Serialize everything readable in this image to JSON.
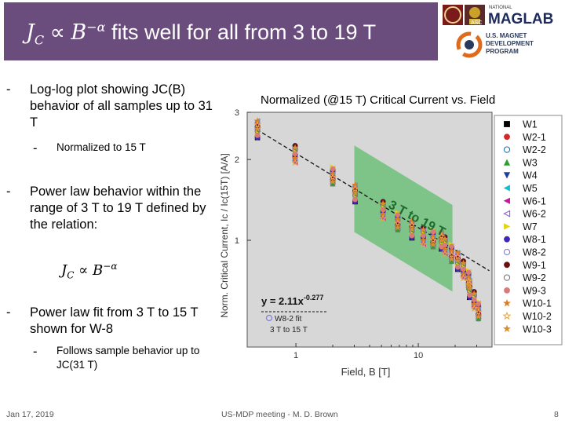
{
  "slide": {
    "title_jc": "J",
    "title_c": "C",
    "title_prop": " ∝ ",
    "title_b": "B",
    "title_exp": "−α",
    "title_rest": " fits well for all from 3 to 19 T",
    "logo_text": "MAGLAB",
    "logo_national": "NATIONAL",
    "logo_asc": "ASC",
    "program_text_1": "U.S. MAGNET",
    "program_text_2": "DEVELOPMENT",
    "program_text_3": "PROGRAM"
  },
  "bullets": [
    {
      "dash": "-",
      "text": "Log-log plot showing JC(B) behavior of all samples up to 31 T"
    },
    {
      "dash": "-",
      "text": "Normalized to 15 T"
    },
    {
      "dash": "-",
      "text": "Power law behavior within the range of 3 T to 19 T defined by the relation:"
    },
    {
      "dash": "-",
      "text": "Power law fit from 3 T to 15 T shown for W-8"
    },
    {
      "dash": "-",
      "text": "Follows sample behavior up to JC(31 T)"
    }
  ],
  "formula": {
    "j": "J",
    "c": "C",
    "prop": " ∝ ",
    "b": "B",
    "exp": "−α"
  },
  "footer": {
    "date": "Jan 17, 2019",
    "meeting": "US-MDP meeting - M. D. Brown",
    "page": "8"
  },
  "chart_data": {
    "type": "scatter",
    "title": "Normalized (@15 T) Critical Current vs. Field",
    "xlabel": "Field, B [T]",
    "ylabel": "Norm. Critical Current, Ic / Ic(15T) [A/A]",
    "xscale": "log",
    "yscale": "log",
    "xlim": [
      0.4,
      40
    ],
    "ylim": [
      0.4,
      3
    ],
    "x_ticks": [
      "1",
      "10"
    ],
    "y_ticks": [
      "1",
      "2",
      "3"
    ],
    "band_label": "3 T to 19 T",
    "fit_equation": "y = 2.11x",
    "fit_exponent": "-0.277",
    "fit_legend_1": "W8-2 fit",
    "fit_legend_2": "3 T to 15 T",
    "fit": {
      "a": 2.11,
      "b": -0.277
    },
    "legend_placement": "right",
    "series": [
      {
        "name": "W1",
        "color": "#000000",
        "marker": "square"
      },
      {
        "name": "W2-1",
        "color": "#d62728",
        "marker": "circle"
      },
      {
        "name": "W2-2",
        "color": "#1f77b4",
        "marker": "circle-open"
      },
      {
        "name": "W3",
        "color": "#2ca02c",
        "marker": "triangle-up"
      },
      {
        "name": "W4",
        "color": "#1f3c9f",
        "marker": "triangle-down"
      },
      {
        "name": "W5",
        "color": "#17becf",
        "marker": "triangle-left"
      },
      {
        "name": "W6-1",
        "color": "#c2169c",
        "marker": "triangle-left"
      },
      {
        "name": "W6-2",
        "color": "#8c5fd6",
        "marker": "triangle-left-open"
      },
      {
        "name": "W7",
        "color": "#e7d211",
        "marker": "triangle-right"
      },
      {
        "name": "W8-1",
        "color": "#3f27b8",
        "marker": "circle"
      },
      {
        "name": "W8-2",
        "color": "#7f7fd6",
        "marker": "circle-open"
      },
      {
        "name": "W9-1",
        "color": "#6b0f0f",
        "marker": "circle"
      },
      {
        "name": "W9-2",
        "color": "#777777",
        "marker": "circle-open"
      },
      {
        "name": "W9-3",
        "color": "#d97a7a",
        "marker": "circle"
      },
      {
        "name": "W10-1",
        "color": "#e07a1f",
        "marker": "star"
      },
      {
        "name": "W10-2",
        "color": "#e8a84a",
        "marker": "star-open"
      },
      {
        "name": "W10-3",
        "color": "#d98f2e",
        "marker": "star"
      }
    ],
    "x_values": [
      0.5,
      1,
      2,
      3,
      5,
      7,
      9,
      11,
      13,
      15,
      17,
      19,
      21,
      23,
      25,
      27,
      29,
      31
    ],
    "y_values": [
      2.6,
      2.1,
      1.75,
      1.5,
      1.3,
      1.18,
      1.1,
      1.04,
      1.02,
      1.0,
      0.96,
      0.9,
      0.84,
      0.78,
      0.72,
      0.66,
      0.6,
      0.55
    ]
  }
}
